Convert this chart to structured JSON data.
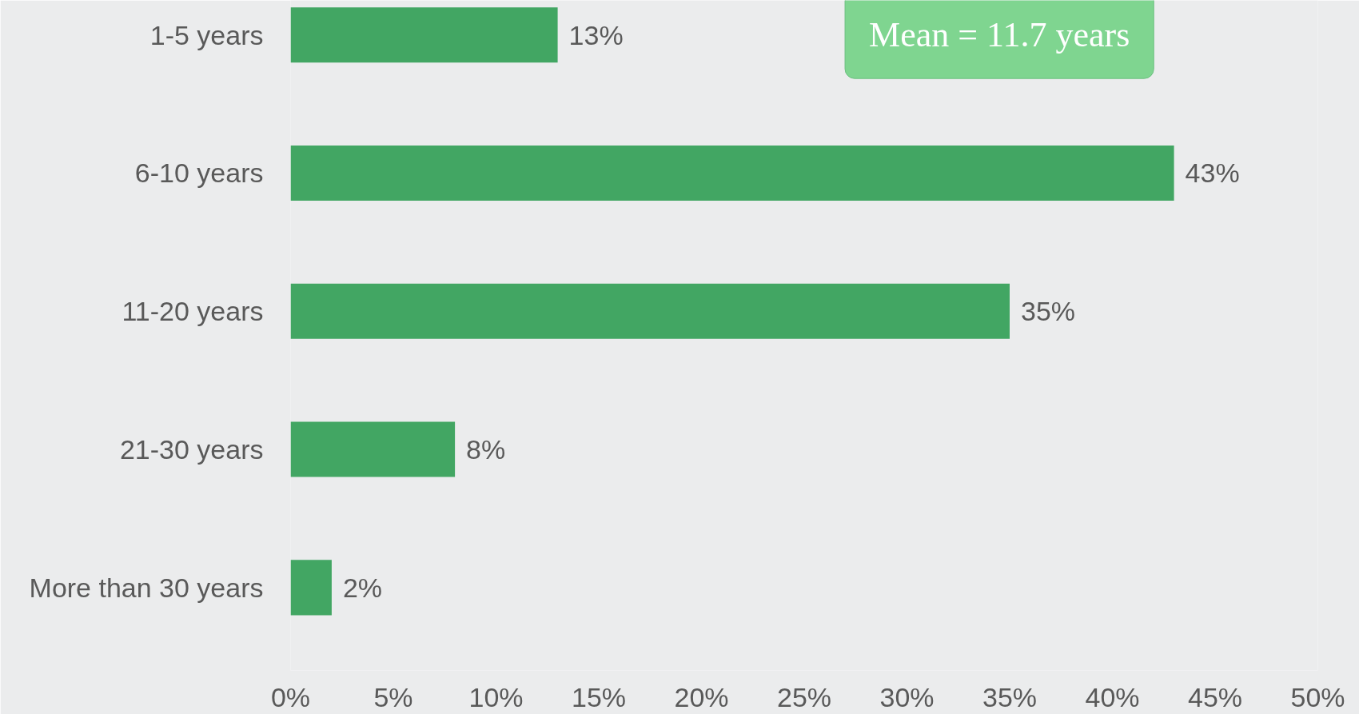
{
  "chart_data": {
    "type": "bar",
    "orientation": "horizontal",
    "categories": [
      "1-5 years",
      "6-10 years",
      "11-20 years",
      "21-30 years",
      "More than 30 years"
    ],
    "values": [
      13,
      43,
      35,
      8,
      2
    ],
    "value_labels": [
      "13%",
      "43%",
      "35%",
      "8%",
      "2%"
    ],
    "color": "#42a663",
    "xlim": [
      0,
      50
    ],
    "xticks": [
      {
        "value": 0,
        "label": "0%"
      },
      {
        "value": 5,
        "label": "5%"
      },
      {
        "value": 10,
        "label": "10%"
      },
      {
        "value": 15,
        "label": "15%"
      },
      {
        "value": 20,
        "label": "20%"
      },
      {
        "value": 25,
        "label": "25%"
      },
      {
        "value": 30,
        "label": "30%"
      },
      {
        "value": 35,
        "label": "35%"
      },
      {
        "value": 40,
        "label": "40%"
      },
      {
        "value": 45,
        "label": "45%"
      },
      {
        "value": 50,
        "label": "50%"
      }
    ],
    "annotations": [
      "Mean = 11.7 years"
    ]
  }
}
